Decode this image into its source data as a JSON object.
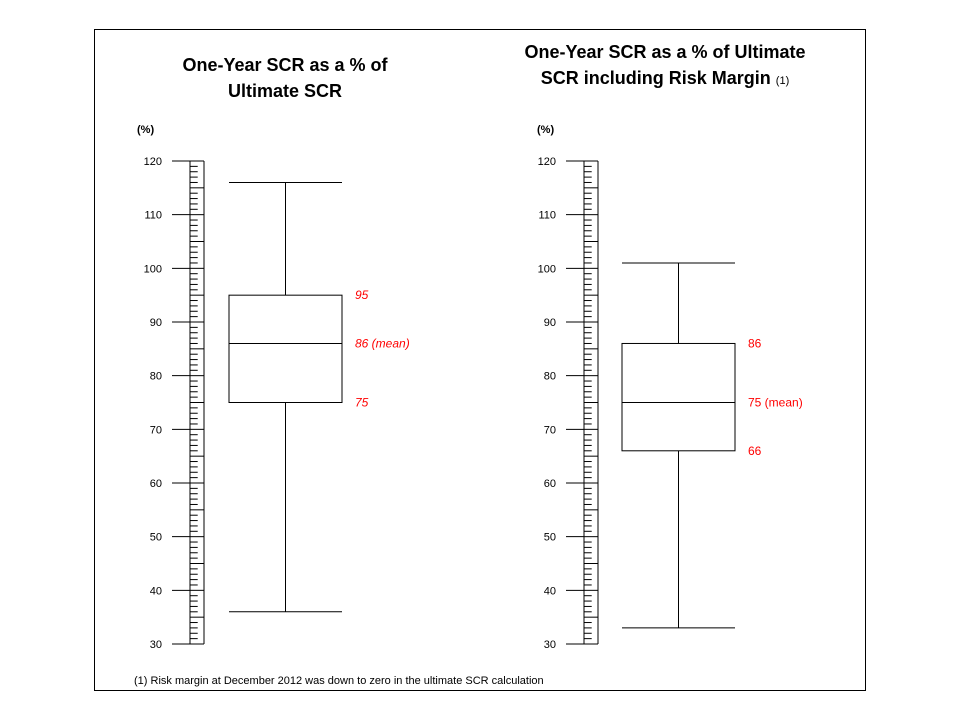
{
  "chart_data": [
    {
      "type": "boxplot",
      "title": "One-Year SCR as a % of Ultimate SCR",
      "unit_label": "(%)",
      "ylim": [
        30,
        120
      ],
      "y_ticks": [
        "30",
        "40",
        "50",
        "60",
        "70",
        "80",
        "90",
        "100",
        "110",
        "120"
      ],
      "whisker_low": 36,
      "q1": 75,
      "median": 86,
      "q3": 95,
      "whisker_high": 116,
      "labels": {
        "q3": "95",
        "median": "86  (mean)",
        "q1": "75"
      },
      "label_style": "italic"
    },
    {
      "type": "boxplot",
      "title": "One-Year SCR as a % of Ultimate SCR including Risk Margin",
      "title_ref": "(1)",
      "unit_label": "(%)",
      "ylim": [
        30,
        120
      ],
      "y_ticks": [
        "30",
        "40",
        "50",
        "60",
        "70",
        "80",
        "90",
        "100",
        "110",
        "120"
      ],
      "whisker_low": 33,
      "q1": 66,
      "median": 75,
      "q3": 86,
      "whisker_high": 101,
      "labels": {
        "q3": "86",
        "median": "75  (mean)",
        "q1": "66"
      },
      "label_style": "normal"
    }
  ],
  "footnote": "(1) Risk margin at December 2012 was down to zero in the ultimate SCR calculation",
  "colors": {
    "axis": "#000000",
    "annotation": "#ff0000",
    "border": "#000000"
  }
}
